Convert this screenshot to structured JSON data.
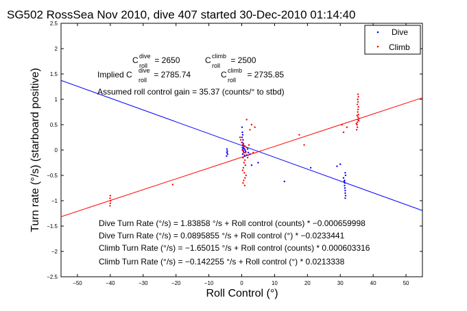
{
  "chart_data": {
    "type": "scatter",
    "title": "SG502 RossSea Nov 2010, dive 407 started 30-Dec-2010 01:14:40",
    "xlabel": "Roll Control (°)",
    "ylabel": "Turn rate (°/s) (starboard positive)",
    "xlim": [
      -55,
      55
    ],
    "ylim": [
      -2.5,
      2.5
    ],
    "xticks": [
      -50,
      -40,
      -30,
      -20,
      -10,
      0,
      10,
      20,
      30,
      40,
      50
    ],
    "xtick_labels": [
      "−50",
      "−40",
      "−30",
      "−20",
      "−10",
      "0",
      "10",
      "20",
      "30",
      "40",
      "50"
    ],
    "yticks": [
      -2.5,
      -2,
      -1.5,
      -1,
      -0.5,
      0,
      0.5,
      1,
      1.5,
      2,
      2.5
    ],
    "ytick_labels": [
      "−2.5",
      "−2",
      "−1.5",
      "−1",
      "−0.5",
      "0",
      "0.5",
      "1",
      "1.5",
      "2",
      "2.5"
    ],
    "grid": false,
    "legend_position": "top-right",
    "series": [
      {
        "name": "Dive",
        "color": "#0000ff",
        "marker": "dot",
        "points": [
          [
            0.1,
            0.45
          ],
          [
            0.2,
            0.35
          ],
          [
            0.3,
            0.3
          ],
          [
            0.1,
            0.25
          ],
          [
            0.4,
            0.2
          ],
          [
            0.2,
            0.15
          ],
          [
            0.5,
            0.12
          ],
          [
            0.3,
            0.1
          ],
          [
            0.6,
            0.08
          ],
          [
            0.2,
            0.05
          ],
          [
            0.8,
            0.03
          ],
          [
            0.4,
            0.02
          ],
          [
            1.0,
            0.0
          ],
          [
            0.5,
            -0.02
          ],
          [
            1.2,
            -0.03
          ],
          [
            0.7,
            -0.05
          ],
          [
            0.3,
            -0.08
          ],
          [
            1.5,
            -0.1
          ],
          [
            0.9,
            -0.12
          ],
          [
            0.4,
            -0.15
          ],
          [
            2.0,
            -0.05
          ],
          [
            2.5,
            -0.08
          ],
          [
            1.8,
            0.02
          ],
          [
            -4.5,
            -0.05
          ],
          [
            -4.3,
            -0.08
          ],
          [
            -4.6,
            -0.12
          ],
          [
            -4.4,
            -0.02
          ],
          [
            -4.5,
            0.02
          ],
          [
            3.0,
            -0.3
          ],
          [
            5.0,
            -0.25
          ],
          [
            13.0,
            -0.62
          ],
          [
            21.0,
            -0.35
          ],
          [
            29.0,
            -0.32
          ],
          [
            30.0,
            -0.28
          ],
          [
            31.0,
            -0.55
          ],
          [
            31.2,
            -0.62
          ],
          [
            31.3,
            -0.7
          ],
          [
            31.4,
            -0.75
          ],
          [
            31.5,
            -0.8
          ],
          [
            31.5,
            -0.85
          ],
          [
            31.6,
            -0.9
          ],
          [
            31.5,
            -0.95
          ],
          [
            31.4,
            -0.65
          ],
          [
            31.3,
            -0.6
          ],
          [
            31.6,
            -0.5
          ],
          [
            31.5,
            -0.45
          ]
        ]
      },
      {
        "name": "Climb",
        "color": "#ff0000",
        "marker": "dot",
        "points": [
          [
            -40.0,
            -0.9
          ],
          [
            -40.1,
            -0.95
          ],
          [
            -39.9,
            -1.0
          ],
          [
            -40.0,
            -1.05
          ],
          [
            -40.1,
            -1.1
          ],
          [
            -21.0,
            -0.68
          ],
          [
            -0.5,
            0.25
          ],
          [
            -0.3,
            0.2
          ],
          [
            0.0,
            0.15
          ],
          [
            0.3,
            0.1
          ],
          [
            0.5,
            0.05
          ],
          [
            0.2,
            0.0
          ],
          [
            0.6,
            -0.05
          ],
          [
            0.8,
            -0.1
          ],
          [
            0.4,
            -0.15
          ],
          [
            1.0,
            -0.2
          ],
          [
            0.7,
            -0.25
          ],
          [
            1.2,
            -0.05
          ],
          [
            1.5,
            0.05
          ],
          [
            0.9,
            0.08
          ],
          [
            1.1,
            -0.3
          ],
          [
            0.5,
            -0.35
          ],
          [
            2.0,
            -0.1
          ],
          [
            2.2,
            0.1
          ],
          [
            1.8,
            -0.15
          ],
          [
            0.3,
            -0.4
          ],
          [
            0.8,
            -0.45
          ],
          [
            1.0,
            -0.55
          ],
          [
            0.6,
            -0.6
          ],
          [
            0.4,
            -0.65
          ],
          [
            1.3,
            -0.5
          ],
          [
            0.9,
            -0.7
          ],
          [
            2.5,
            0.4
          ],
          [
            3.0,
            0.5
          ],
          [
            4.0,
            0.45
          ],
          [
            1.5,
            0.6
          ],
          [
            3.5,
            -0.05
          ],
          [
            17.5,
            0.3
          ],
          [
            19.0,
            0.1
          ],
          [
            30.5,
            0.5
          ],
          [
            31.0,
            0.35
          ],
          [
            32.0,
            0.45
          ],
          [
            35.0,
            0.4
          ],
          [
            35.1,
            0.5
          ],
          [
            35.2,
            0.55
          ],
          [
            35.3,
            0.6
          ],
          [
            35.4,
            0.65
          ],
          [
            35.5,
            0.7
          ],
          [
            35.3,
            0.75
          ],
          [
            35.4,
            0.8
          ],
          [
            35.5,
            0.85
          ],
          [
            35.2,
            0.9
          ],
          [
            35.4,
            0.95
          ],
          [
            35.3,
            1.0
          ],
          [
            35.5,
            1.05
          ],
          [
            35.4,
            1.1
          ],
          [
            35.2,
            0.45
          ],
          [
            35.6,
            0.58
          ],
          [
            35.1,
            0.68
          ],
          [
            34.9,
            0.52
          ],
          [
            35.7,
            0.62
          ]
        ]
      }
    ],
    "fit_lines": [
      {
        "name": "Dive",
        "color": "#0000ff",
        "slope": -0.0233441,
        "intercept": 0.0895855
      },
      {
        "name": "Climb",
        "color": "#ff0000",
        "slope": 0.0213338,
        "intercept": -0.142255
      }
    ],
    "annotations": {
      "c_dive_base": "C",
      "c_dive_sup": "dive",
      "c_dive_sub": "roll",
      "c_dive_value": " = 2650",
      "c_climb_base": "C",
      "c_climb_sup": "climb",
      "c_climb_sub": "roll",
      "c_climb_value": " = 2500",
      "implied_prefix": "Implied C",
      "implied_dive_sup": "dive",
      "implied_dive_sub": "roll",
      "implied_dive_value": " = 2785.74",
      "implied_climb_base": "C",
      "implied_climb_sup": "climb",
      "implied_climb_sub": "roll",
      "implied_climb_value": " = 2735.85",
      "gain": "Assumed roll control gain = 35.37 (counts/° to stbd)",
      "eq1": "Dive Turn Rate (°/s) = 1.83858 °/s + Roll control (counts) * −0.000659998",
      "eq2": "Dive Turn Rate (°/s) = 0.0895855 °/s + Roll control (°) * −0.0233441",
      "eq3": "Climb Turn Rate (°/s) = −1.65015 °/s + Roll control (counts) * 0.000603316",
      "eq4": "Climb Turn Rate (°/s) = −0.142255 °/s + Roll control (°) * 0.0213338"
    }
  }
}
